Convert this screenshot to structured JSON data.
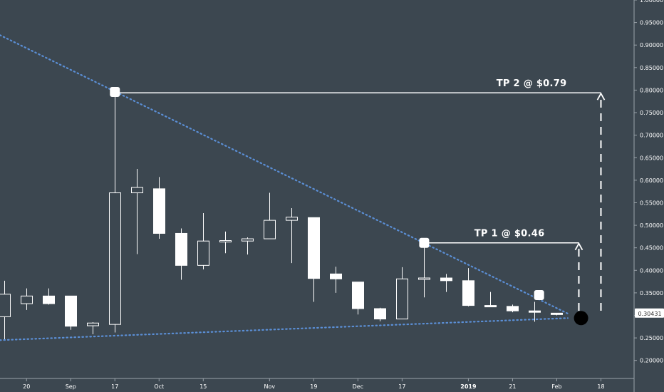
{
  "chart_data": {
    "type": "candlestick",
    "x_tick_labels": [
      {
        "label": "20",
        "at": 1,
        "bold": false
      },
      {
        "label": "Sep",
        "at": 3,
        "bold": false
      },
      {
        "label": "17",
        "at": 5,
        "bold": false
      },
      {
        "label": "Oct",
        "at": 7,
        "bold": false
      },
      {
        "label": "15",
        "at": 9,
        "bold": false
      },
      {
        "label": "Nov",
        "at": 12,
        "bold": false
      },
      {
        "label": "19",
        "at": 14,
        "bold": false
      },
      {
        "label": "Dec",
        "at": 16,
        "bold": false
      },
      {
        "label": "17",
        "at": 18,
        "bold": false
      },
      {
        "label": "2019",
        "at": 21,
        "bold": true
      },
      {
        "label": "21",
        "at": 23,
        "bold": false
      },
      {
        "label": "Feb",
        "at": 25,
        "bold": false
      },
      {
        "label": "18",
        "at": 27,
        "bold": false
      }
    ],
    "y_tick_labels": [
      "1.00000",
      "0.95000",
      "0.90000",
      "0.85000",
      "0.80000",
      "0.75000",
      "0.70000",
      "0.65000",
      "0.60000",
      "0.55000",
      "0.50000",
      "0.45000",
      "0.40000",
      "0.35000",
      "0.30000",
      "0.25000",
      "0.20000"
    ],
    "y_tick_values": [
      1.0,
      0.95,
      0.9,
      0.85,
      0.8,
      0.75,
      0.7,
      0.65,
      0.6,
      0.55,
      0.5,
      0.45,
      0.4,
      0.35,
      0.3,
      0.25,
      0.2
    ],
    "ylim": [
      0.16,
      1.0
    ],
    "xlim": [
      -0.2,
      28.5
    ],
    "candles": [
      {
        "i": 0,
        "o": 0.297,
        "h": 0.377,
        "l": 0.247,
        "c": 0.347
      },
      {
        "i": 1,
        "o": 0.326,
        "h": 0.36,
        "l": 0.312,
        "c": 0.343
      },
      {
        "i": 2,
        "o": 0.343,
        "h": 0.36,
        "l": 0.324,
        "c": 0.326
      },
      {
        "i": 3,
        "o": 0.343,
        "h": 0.343,
        "l": 0.268,
        "c": 0.276
      },
      {
        "i": 4,
        "o": 0.277,
        "h": 0.285,
        "l": 0.258,
        "c": 0.283
      },
      {
        "i": 5,
        "o": 0.28,
        "h": 0.796,
        "l": 0.262,
        "c": 0.572
      },
      {
        "i": 6,
        "o": 0.572,
        "h": 0.625,
        "l": 0.436,
        "c": 0.584
      },
      {
        "i": 7,
        "o": 0.581,
        "h": 0.607,
        "l": 0.47,
        "c": 0.482
      },
      {
        "i": 8,
        "o": 0.482,
        "h": 0.493,
        "l": 0.379,
        "c": 0.411
      },
      {
        "i": 9,
        "o": 0.411,
        "h": 0.527,
        "l": 0.402,
        "c": 0.465
      },
      {
        "i": 10,
        "o": 0.465,
        "h": 0.486,
        "l": 0.438,
        "c": 0.466
      },
      {
        "i": 11,
        "o": 0.465,
        "h": 0.473,
        "l": 0.435,
        "c": 0.47
      },
      {
        "i": 12,
        "o": 0.47,
        "h": 0.572,
        "l": 0.47,
        "c": 0.511
      },
      {
        "i": 13,
        "o": 0.511,
        "h": 0.538,
        "l": 0.416,
        "c": 0.518
      },
      {
        "i": 14,
        "o": 0.517,
        "h": 0.517,
        "l": 0.33,
        "c": 0.382
      },
      {
        "i": 15,
        "o": 0.392,
        "h": 0.408,
        "l": 0.35,
        "c": 0.381
      },
      {
        "i": 16,
        "o": 0.374,
        "h": 0.374,
        "l": 0.302,
        "c": 0.315
      },
      {
        "i": 17,
        "o": 0.315,
        "h": 0.317,
        "l": 0.287,
        "c": 0.292
      },
      {
        "i": 18,
        "o": 0.292,
        "h": 0.407,
        "l": 0.292,
        "c": 0.381
      },
      {
        "i": 19,
        "o": 0.381,
        "h": 0.46,
        "l": 0.34,
        "c": 0.383
      },
      {
        "i": 20,
        "o": 0.383,
        "h": 0.392,
        "l": 0.352,
        "c": 0.377
      },
      {
        "i": 21,
        "o": 0.377,
        "h": 0.405,
        "l": 0.32,
        "c": 0.322
      },
      {
        "i": 22,
        "o": 0.322,
        "h": 0.352,
        "l": 0.319,
        "c": 0.32
      },
      {
        "i": 23,
        "o": 0.32,
        "h": 0.324,
        "l": 0.307,
        "c": 0.31
      },
      {
        "i": 24,
        "o": 0.31,
        "h": 0.33,
        "l": 0.286,
        "c": 0.309
      },
      {
        "i": 25,
        "o": 0.305,
        "h": 0.305,
        "l": 0.3,
        "c": 0.304
      }
    ],
    "upper_trendline": [
      [
        -0.2,
        0.922
      ],
      [
        25.5,
        0.304
      ]
    ],
    "lower_trendline": [
      [
        -0.2,
        0.245
      ],
      [
        25.5,
        0.294
      ]
    ],
    "markers": [
      {
        "x": 5,
        "y": 0.796
      },
      {
        "x": 19,
        "y": 0.461
      },
      {
        "x": 24.2,
        "y": 0.345
      }
    ],
    "current_point": {
      "x": 26.1,
      "y": 0.294
    },
    "targets": [
      {
        "label": "TP 2 @ $0.79",
        "y": 0.794,
        "from_x": 5,
        "to_x": 27
      },
      {
        "label": "TP 1 @ $0.46",
        "y": 0.461,
        "from_x": 19,
        "to_x": 26
      }
    ],
    "current_price_label": "0.30431",
    "current_price": 0.30431,
    "grid": false,
    "colors": {
      "background": "#3c4750",
      "candle": "#ffffff",
      "trendline": "#5b8fd6",
      "axis_text": "#ffffff",
      "price_tag_bg": "#ffffff",
      "price_tag_text": "#333333"
    }
  }
}
